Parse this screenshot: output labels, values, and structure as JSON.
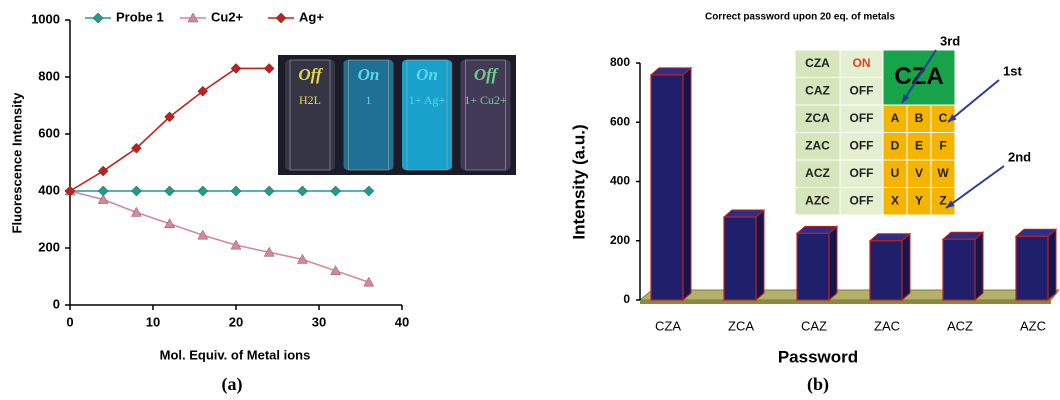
{
  "chart_data": [
    {
      "type": "line",
      "xlabel": "Mol. Equiv. of Metal ions",
      "ylabel": "Fluorescence Intensity",
      "caption": "(a)",
      "xlim": [
        0,
        40
      ],
      "xticks": [
        0,
        10,
        20,
        30,
        40
      ],
      "ylim": [
        0,
        1000
      ],
      "yticks": [
        0,
        200,
        400,
        600,
        800,
        1000
      ],
      "series": [
        {
          "name": "Probe 1",
          "color": "#1a9e8e",
          "marker": "diamond",
          "x": [
            0,
            4,
            8,
            12,
            16,
            20,
            24,
            28,
            32,
            36
          ],
          "values": [
            400,
            400,
            400,
            400,
            400,
            400,
            400,
            400,
            400,
            400
          ]
        },
        {
          "name": "Cu2+",
          "color": "#d4899b",
          "marker": "triangle",
          "x": [
            0,
            4,
            8,
            12,
            16,
            20,
            24,
            28,
            32,
            36
          ],
          "values": [
            400,
            370,
            325,
            285,
            245,
            210,
            185,
            160,
            120,
            80
          ]
        },
        {
          "name": "Ag+",
          "color": "#c0211a",
          "marker": "diamond",
          "x": [
            0,
            4,
            8,
            12,
            16,
            20,
            24
          ],
          "values": [
            400,
            470,
            550,
            660,
            750,
            830,
            830
          ]
        }
      ],
      "inset": [
        {
          "state": "Off",
          "label": "H2L",
          "text_color": "#e6d84a",
          "glow": "#3a3a4a"
        },
        {
          "state": "On",
          "label": "1",
          "text_color": "#5ad8e6",
          "glow": "#1f7fa8"
        },
        {
          "state": "On",
          "label": "1+ Ag+",
          "text_color": "#5ad8e6",
          "glow": "#18b8e8"
        },
        {
          "state": "Off",
          "label": "1+ Cu2+",
          "text_color": "#6fd08a",
          "glow": "#4a4060"
        }
      ]
    },
    {
      "type": "bar",
      "title": "Correct password upon 20 eq. of metals",
      "xlabel": "Password",
      "ylabel": "Intensity (a.u.)",
      "caption": "(b)",
      "categories": [
        "CZA",
        "ZCA",
        "CAZ",
        "ZAC",
        "ACZ",
        "AZC"
      ],
      "values": [
        760,
        280,
        225,
        200,
        205,
        215
      ],
      "color": "#1f1f6b",
      "edge_color": "#c0211a",
      "ylim": [
        0,
        800
      ],
      "yticks": [
        0,
        200,
        400,
        600,
        800
      ],
      "password_table": {
        "rows": [
          [
            "CZA",
            "ON"
          ],
          [
            "CAZ",
            "OFF"
          ],
          [
            "ZCA",
            "OFF",
            "A",
            "B",
            "C"
          ],
          [
            "ZAC",
            "OFF",
            "D",
            "E",
            "F"
          ],
          [
            "ACZ",
            "OFF",
            "U",
            "V",
            "W"
          ],
          [
            "AZC",
            "OFF",
            "X",
            "Y",
            "Z"
          ]
        ],
        "highlight": "CZA",
        "arrows": [
          "3rd",
          "1st",
          "2nd"
        ]
      }
    }
  ]
}
